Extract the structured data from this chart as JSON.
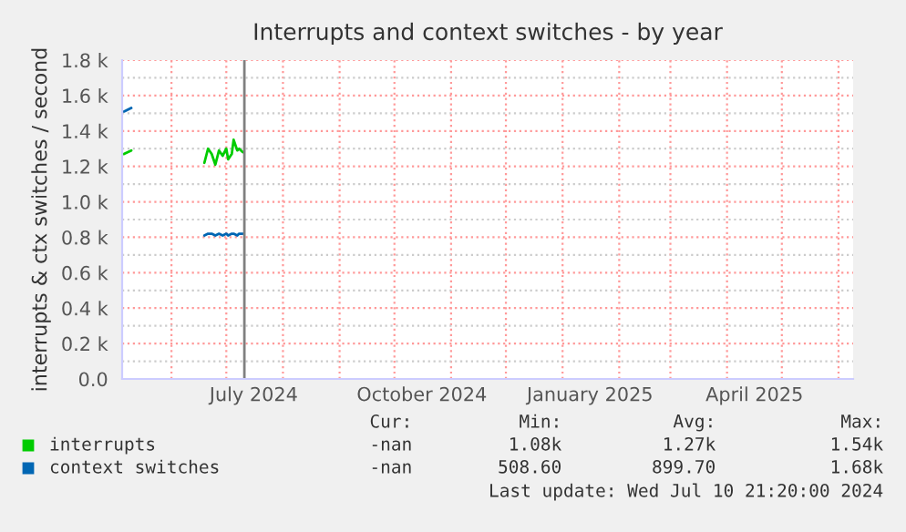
{
  "chart_data": {
    "type": "line",
    "title": "Interrupts and context switches - by year",
    "ylabel": "interrupts & ctx switches / second",
    "xlim": [
      "2024-05-05",
      "2025-06-09"
    ],
    "ylim": [
      0,
      1800
    ],
    "xticks": [
      {
        "value": "2024-07-16",
        "label": "July 2024"
      },
      {
        "value": "2024-10-16",
        "label": "October 2024"
      },
      {
        "value": "2025-01-16",
        "label": "January 2025"
      },
      {
        "value": "2025-04-16",
        "label": "April 2025"
      }
    ],
    "yticks": [
      {
        "value": 0,
        "label": "0.0"
      },
      {
        "value": 200,
        "label": "0.2 k"
      },
      {
        "value": 400,
        "label": "0.4 k"
      },
      {
        "value": 600,
        "label": "0.6 k"
      },
      {
        "value": 800,
        "label": "0.8 k"
      },
      {
        "value": 1000,
        "label": "1.0 k"
      },
      {
        "value": 1200,
        "label": "1.2 k"
      },
      {
        "value": 1400,
        "label": "1.4 k"
      },
      {
        "value": 1600,
        "label": "1.6 k"
      },
      {
        "value": 1800,
        "label": "1.8 k"
      }
    ],
    "grid": true,
    "legend": "bottom",
    "series": [
      {
        "name": "interrupts",
        "color": "#00cc00",
        "x": [
          "2024-05-06",
          "2024-05-10",
          "2024-05-11",
          "2024-06-19",
          "2024-06-21",
          "2024-06-23",
          "2024-06-25",
          "2024-06-27",
          "2024-06-29",
          "2024-07-01",
          "2024-07-02",
          "2024-07-04",
          "2024-07-05",
          "2024-07-07",
          "2024-07-08",
          "2024-07-10"
        ],
        "values": [
          1270,
          1290,
          null,
          1220,
          1300,
          1270,
          1210,
          1290,
          1260,
          1300,
          1240,
          1270,
          1350,
          1290,
          1300,
          1280
        ]
      },
      {
        "name": "context switches",
        "color": "#0066b3",
        "x": [
          "2024-05-06",
          "2024-05-10",
          "2024-05-11",
          "2024-06-19",
          "2024-06-21",
          "2024-06-23",
          "2024-06-25",
          "2024-06-27",
          "2024-06-29",
          "2024-07-01",
          "2024-07-02",
          "2024-07-04",
          "2024-07-05",
          "2024-07-07",
          "2024-07-08",
          "2024-07-10"
        ],
        "values": [
          1510,
          1530,
          null,
          810,
          820,
          820,
          810,
          820,
          810,
          820,
          810,
          820,
          820,
          810,
          820,
          820
        ]
      }
    ],
    "ref_lines": [
      {
        "axis": "x",
        "value": "2024-07-10T21:20",
        "color": "#808080"
      }
    ],
    "annotations": [
      "Cur:",
      "Min:",
      "Avg:",
      "Max:",
      "-nan",
      "1.08k",
      "1.27k",
      "1.54k",
      "-nan",
      "508.60",
      "899.70",
      "1.68k",
      "Last update: Wed Jul 10 21:20:00 2024"
    ]
  }
}
